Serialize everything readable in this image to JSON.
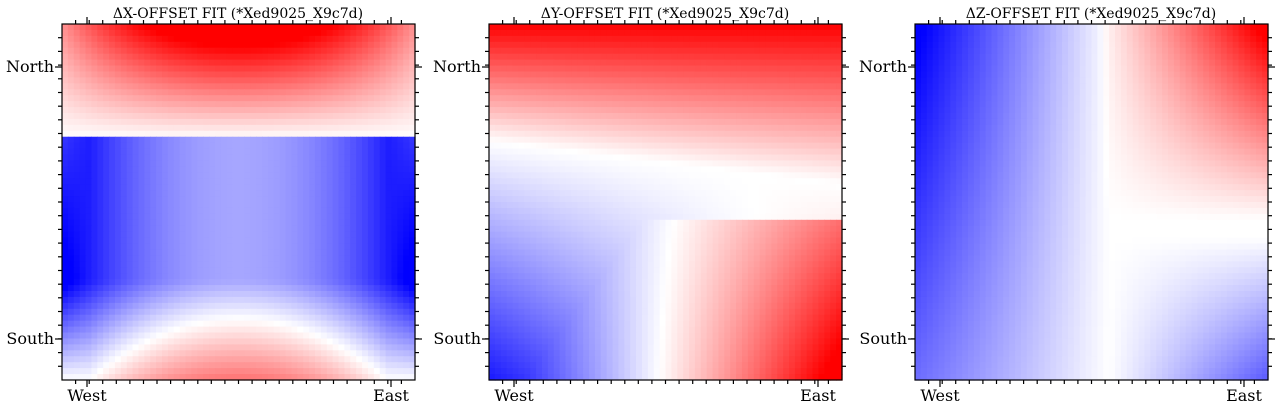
{
  "chart_data": [
    {
      "type": "heatmap",
      "title": "ΔX-OFFSET FIT (*Xed9025_X9c7d)",
      "xticks": [
        "West",
        "East"
      ],
      "yticks": [
        "North",
        "South"
      ],
      "colormap": "bwr",
      "colors": {
        "low": "#0000ff",
        "mid": "#ffffff",
        "high": "#ff0000"
      },
      "grid": false
    },
    {
      "type": "heatmap",
      "title": "ΔY-OFFSET FIT (*Xed9025_X9c7d)",
      "xticks": [
        "West",
        "East"
      ],
      "yticks": [
        "North",
        "South"
      ],
      "colormap": "bwr",
      "colors": {
        "low": "#0000ff",
        "mid": "#ffffff",
        "high": "#ff0000"
      },
      "grid": false
    },
    {
      "type": "heatmap",
      "title": "ΔZ-OFFSET FIT (*Xed9025_X9c7d)",
      "xticks": [
        "West",
        "East"
      ],
      "yticks": [
        "North",
        "South"
      ],
      "colormap": "bwr",
      "colors": {
        "low": "#0000ff",
        "mid": "#ffffff",
        "high": "#ff0000"
      },
      "grid": false
    }
  ]
}
